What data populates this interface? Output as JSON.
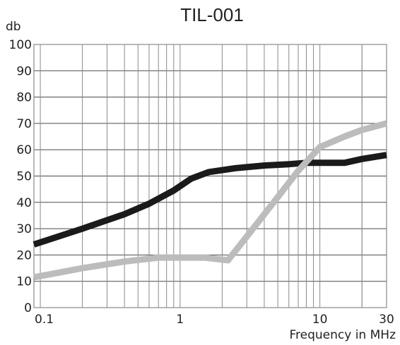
{
  "chart_data": {
    "type": "line",
    "title": "TIL-001",
    "ylabel": "db",
    "xlabel": "Frequency in MHz",
    "xscale": "log",
    "xlim": [
      0.09,
      30
    ],
    "ylim": [
      0,
      100
    ],
    "grid": true,
    "yticks": [
      0,
      10,
      20,
      30,
      40,
      50,
      60,
      70,
      80,
      90,
      100
    ],
    "xticks": [
      {
        "value": 0.1,
        "label": "0.1"
      },
      {
        "value": 1,
        "label": "1"
      },
      {
        "value": 10,
        "label": "10"
      },
      {
        "value": 30,
        "label": "30"
      }
    ],
    "series": [
      {
        "color": "#1a1a1a",
        "x": [
          0.09,
          0.2,
          0.4,
          0.6,
          0.9,
          1.2,
          1.6,
          2.5,
          4,
          6,
          8,
          10,
          15,
          20,
          30
        ],
        "y": [
          24,
          30,
          35.5,
          39.5,
          44.5,
          49,
          51.5,
          53,
          54,
          54.5,
          55,
          55,
          55,
          56.5,
          58
        ]
      },
      {
        "color": "#bcbcbc",
        "x": [
          0.09,
          0.2,
          0.4,
          0.7,
          1,
          1.5,
          2.2,
          3,
          5,
          7,
          10,
          15,
          20,
          30
        ],
        "y": [
          11.5,
          15,
          17.5,
          19,
          19,
          19,
          18,
          27,
          42,
          52,
          61,
          65,
          67.5,
          70
        ]
      }
    ]
  }
}
